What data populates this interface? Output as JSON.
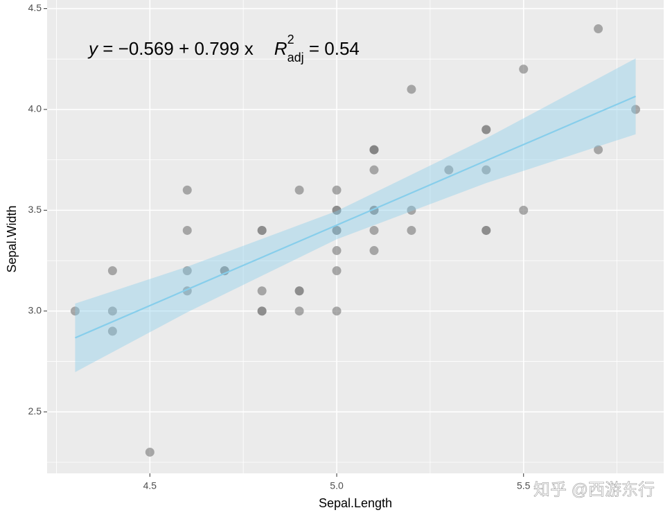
{
  "chart_data": {
    "type": "scatter",
    "x_label": "Sepal.Length",
    "y_label": "Sepal.Width",
    "x": [
      5.1,
      4.9,
      4.7,
      4.6,
      5.0,
      5.4,
      4.6,
      5.0,
      4.4,
      4.9,
      5.4,
      4.8,
      4.8,
      4.3,
      5.8,
      5.7,
      5.4,
      5.1,
      5.7,
      5.1,
      5.4,
      5.1,
      4.6,
      5.1,
      4.8,
      5.0,
      5.0,
      5.2,
      5.2,
      4.7,
      4.8,
      5.4,
      5.2,
      5.5,
      4.9,
      5.0,
      5.5,
      4.9,
      4.4,
      5.1,
      5.0,
      4.5,
      4.4,
      5.0,
      5.1,
      4.8,
      5.1,
      4.6,
      5.3,
      5.0
    ],
    "series": [
      {
        "color": "#7f7f7f",
        "values": [
          3.5,
          3.0,
          3.2,
          3.1,
          3.6,
          3.9,
          3.4,
          3.4,
          2.9,
          3.1,
          3.7,
          3.4,
          3.0,
          3.0,
          4.0,
          4.4,
          3.9,
          3.5,
          3.8,
          3.8,
          3.4,
          3.7,
          3.6,
          3.3,
          3.4,
          3.0,
          3.4,
          3.5,
          3.4,
          3.2,
          3.1,
          3.4,
          4.1,
          4.2,
          3.1,
          3.2,
          3.5,
          3.6,
          3.0,
          3.4,
          3.5,
          2.3,
          3.2,
          3.5,
          3.8,
          3.0,
          3.8,
          3.2,
          3.7,
          3.3
        ]
      }
    ],
    "fit": {
      "color": "#87ceeb",
      "x": [
        4.3,
        4.6,
        5.0,
        5.4,
        5.8
      ],
      "values": [
        2.867,
        3.107,
        3.426,
        3.746,
        4.065
      ],
      "lower": [
        2.697,
        2.994,
        3.356,
        3.635,
        3.877
      ],
      "upper": [
        3.037,
        3.22,
        3.496,
        3.857,
        4.253
      ]
    },
    "xlim": [
      4.225,
      5.875
    ],
    "ylim": [
      2.195,
      4.505
    ],
    "xticks": [
      4.5,
      {
        "value": 5,
        "label": "5.0"
      },
      5.5
    ],
    "yticks": [
      2.5,
      {
        "value": 3,
        "label": "3.0"
      },
      3.5,
      {
        "value": 4,
        "label": "4.0"
      },
      4.5
    ],
    "grid": true,
    "annotation": {
      "lhs": "y",
      "rhs": " = −0.569 + 0.799 x",
      "r": "R",
      "sup": "2",
      "sub": "adj",
      "r2": " = 0.54"
    }
  },
  "watermark": "知乎 @西游东行"
}
